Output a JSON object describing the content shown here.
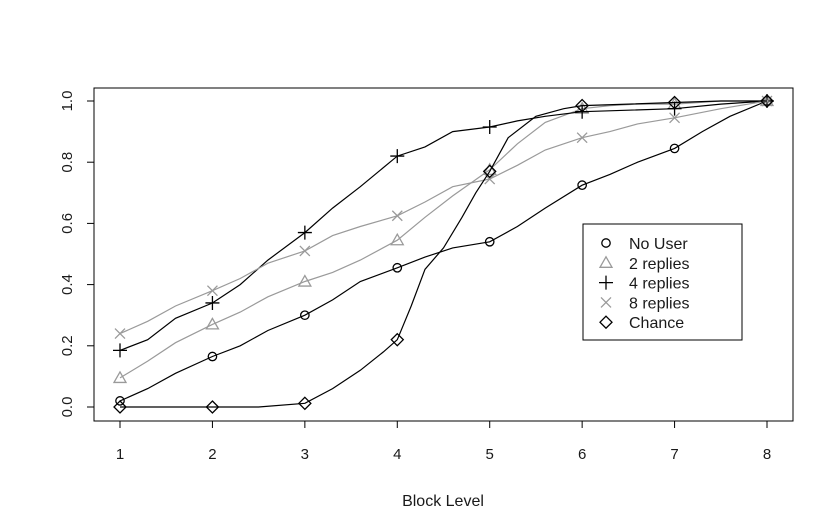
{
  "chart_data": {
    "type": "line",
    "title": "",
    "xlabel": "Block Level",
    "ylabel": "",
    "xlim": [
      1,
      8
    ],
    "ylim": [
      0,
      1
    ],
    "x_ticks": [
      1,
      2,
      3,
      4,
      5,
      6,
      7,
      8
    ],
    "y_ticks": [
      "0.0",
      "0.2",
      "0.4",
      "0.6",
      "0.8",
      "1.0"
    ],
    "legend_position": "right-center",
    "grid": false,
    "series": [
      {
        "name": "No User",
        "marker": "circle",
        "color": "#000000",
        "x": [
          1,
          2,
          3,
          4,
          5,
          6,
          7,
          8
        ],
        "values": [
          0.02,
          0.165,
          0.3,
          0.455,
          0.54,
          0.725,
          0.845,
          1.0
        ],
        "curve": [
          [
            1,
            0.02
          ],
          [
            1.3,
            0.06
          ],
          [
            1.6,
            0.11
          ],
          [
            2,
            0.165
          ],
          [
            2.3,
            0.2
          ],
          [
            2.6,
            0.25
          ],
          [
            3,
            0.3
          ],
          [
            3.3,
            0.35
          ],
          [
            3.6,
            0.41
          ],
          [
            4,
            0.455
          ],
          [
            4.3,
            0.49
          ],
          [
            4.6,
            0.52
          ],
          [
            5,
            0.54
          ],
          [
            5.3,
            0.59
          ],
          [
            5.6,
            0.65
          ],
          [
            6,
            0.725
          ],
          [
            6.3,
            0.76
          ],
          [
            6.6,
            0.8
          ],
          [
            7,
            0.845
          ],
          [
            7.3,
            0.9
          ],
          [
            7.6,
            0.95
          ],
          [
            8,
            1.0
          ]
        ]
      },
      {
        "name": "2 replies",
        "marker": "triangle",
        "color": "#9a9a9a",
        "x": [
          1,
          2,
          3,
          4,
          5,
          6,
          7,
          8
        ],
        "values": [
          0.095,
          0.27,
          0.41,
          0.545,
          0.775,
          0.975,
          0.99,
          1.0
        ],
        "curve": [
          [
            1,
            0.095
          ],
          [
            1.3,
            0.15
          ],
          [
            1.6,
            0.21
          ],
          [
            2,
            0.27
          ],
          [
            2.3,
            0.31
          ],
          [
            2.6,
            0.36
          ],
          [
            3,
            0.41
          ],
          [
            3.3,
            0.44
          ],
          [
            3.6,
            0.48
          ],
          [
            4,
            0.545
          ],
          [
            4.3,
            0.62
          ],
          [
            4.6,
            0.69
          ],
          [
            5,
            0.775
          ],
          [
            5.3,
            0.86
          ],
          [
            5.6,
            0.93
          ],
          [
            6,
            0.975
          ],
          [
            6.3,
            0.985
          ],
          [
            6.6,
            0.99
          ],
          [
            7,
            0.99
          ],
          [
            7.5,
            1.0
          ],
          [
            8,
            1.0
          ]
        ]
      },
      {
        "name": "4 replies",
        "marker": "plus",
        "color": "#000000",
        "x": [
          1,
          2,
          3,
          4,
          5,
          6,
          7,
          8
        ],
        "values": [
          0.185,
          0.34,
          0.57,
          0.82,
          0.915,
          0.965,
          0.975,
          1.0
        ],
        "curve": [
          [
            1,
            0.185
          ],
          [
            1.3,
            0.22
          ],
          [
            1.6,
            0.29
          ],
          [
            2,
            0.34
          ],
          [
            2.3,
            0.4
          ],
          [
            2.6,
            0.48
          ],
          [
            3,
            0.57
          ],
          [
            3.3,
            0.65
          ],
          [
            3.6,
            0.72
          ],
          [
            4,
            0.82
          ],
          [
            4.3,
            0.85
          ],
          [
            4.6,
            0.9
          ],
          [
            5,
            0.915
          ],
          [
            5.3,
            0.935
          ],
          [
            5.6,
            0.95
          ],
          [
            6,
            0.965
          ],
          [
            6.5,
            0.97
          ],
          [
            7,
            0.975
          ],
          [
            7.5,
            0.99
          ],
          [
            8,
            1.0
          ]
        ]
      },
      {
        "name": "8 replies",
        "marker": "cross",
        "color": "#9a9a9a",
        "x": [
          1,
          2,
          3,
          4,
          5,
          6,
          7,
          8
        ],
        "values": [
          0.24,
          0.38,
          0.51,
          0.625,
          0.745,
          0.88,
          0.945,
          1.0
        ],
        "curve": [
          [
            1,
            0.24
          ],
          [
            1.3,
            0.28
          ],
          [
            1.6,
            0.33
          ],
          [
            2,
            0.38
          ],
          [
            2.3,
            0.42
          ],
          [
            2.6,
            0.47
          ],
          [
            3,
            0.51
          ],
          [
            3.3,
            0.56
          ],
          [
            3.6,
            0.59
          ],
          [
            4,
            0.625
          ],
          [
            4.3,
            0.67
          ],
          [
            4.6,
            0.72
          ],
          [
            5,
            0.745
          ],
          [
            5.3,
            0.79
          ],
          [
            5.6,
            0.84
          ],
          [
            6,
            0.88
          ],
          [
            6.3,
            0.9
          ],
          [
            6.6,
            0.925
          ],
          [
            7,
            0.945
          ],
          [
            7.5,
            0.975
          ],
          [
            8,
            1.0
          ]
        ]
      },
      {
        "name": "Chance",
        "marker": "diamond",
        "color": "#000000",
        "x": [
          1,
          2,
          3,
          4,
          5,
          6,
          7,
          8
        ],
        "values": [
          0.0,
          0.0,
          0.012,
          0.22,
          0.77,
          0.985,
          0.995,
          1.0
        ],
        "curve": [
          [
            1,
            0.0
          ],
          [
            1.5,
            0.0
          ],
          [
            2,
            0.0
          ],
          [
            2.5,
            0.0
          ],
          [
            3,
            0.012
          ],
          [
            3.3,
            0.06
          ],
          [
            3.6,
            0.12
          ],
          [
            3.85,
            0.18
          ],
          [
            4,
            0.22
          ],
          [
            4.15,
            0.33
          ],
          [
            4.3,
            0.45
          ],
          [
            4.5,
            0.52
          ],
          [
            4.7,
            0.62
          ],
          [
            4.85,
            0.7
          ],
          [
            5,
            0.77
          ],
          [
            5.2,
            0.88
          ],
          [
            5.5,
            0.95
          ],
          [
            5.8,
            0.975
          ],
          [
            6,
            0.985
          ],
          [
            6.5,
            0.99
          ],
          [
            7,
            0.995
          ],
          [
            7.5,
            1.0
          ],
          [
            8,
            1.0
          ]
        ]
      }
    ]
  }
}
